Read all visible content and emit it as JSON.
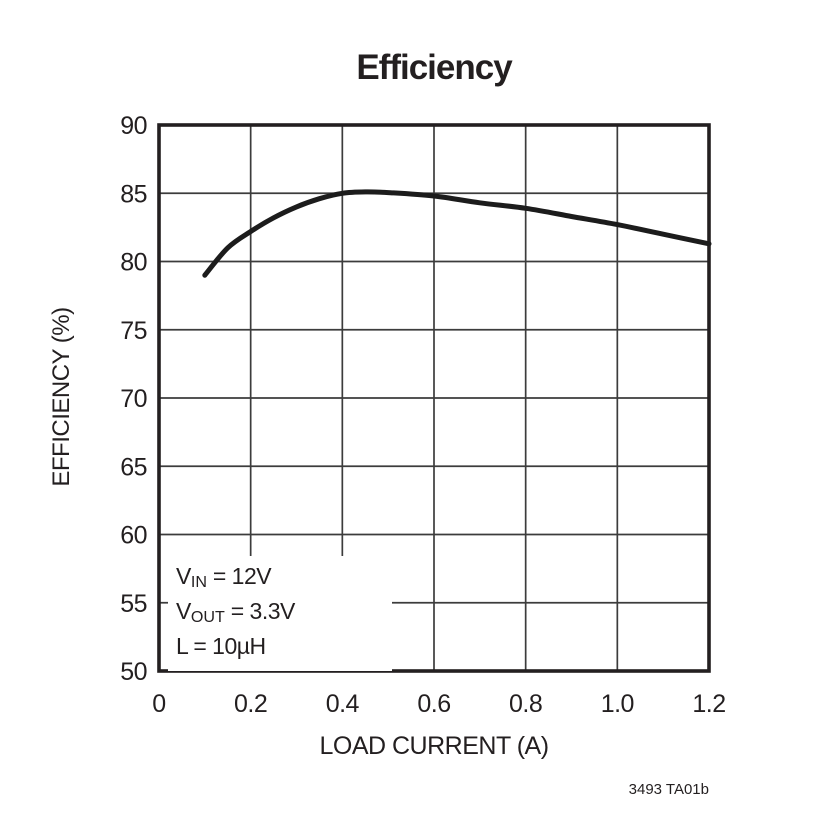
{
  "colors": {
    "ink": "#231f20",
    "grid": "#3c3c3c",
    "curve": "#1c1c1c",
    "background": "#ffffff"
  },
  "footer_code": "3493 TA01b",
  "annotation": {
    "lines": [
      {
        "pre": "V",
        "sub": "IN",
        "post": " = 12V"
      },
      {
        "pre": "V",
        "sub": "OUT",
        "post": " = 3.3V"
      },
      {
        "pre": "L",
        "sub": "",
        "post": " = 10µH"
      }
    ]
  },
  "chart_data": {
    "type": "line",
    "title": "Efficiency",
    "xlabel": "LOAD CURRENT (A)",
    "ylabel": "EFFICIENCY (%)",
    "xlim": [
      0,
      1.2
    ],
    "ylim": [
      50,
      90
    ],
    "xticks": [
      0,
      0.2,
      0.4,
      0.6,
      0.8,
      1.0,
      1.2
    ],
    "xtick_labels": [
      "0",
      "0.2",
      "0.4",
      "0.6",
      "0.8",
      "1.0",
      "1.2"
    ],
    "yticks": [
      50,
      55,
      60,
      65,
      70,
      75,
      80,
      85,
      90
    ],
    "ytick_labels": [
      "50",
      "55",
      "60",
      "65",
      "70",
      "75",
      "80",
      "85",
      "90"
    ],
    "grid": true,
    "legend_position": "none",
    "series": [
      {
        "name": "efficiency-vs-load-current",
        "x": [
          0.1,
          0.15,
          0.2,
          0.25,
          0.3,
          0.35,
          0.4,
          0.45,
          0.5,
          0.6,
          0.7,
          0.8,
          0.9,
          1.0,
          1.1,
          1.2
        ],
        "y": [
          79.0,
          81.0,
          82.2,
          83.2,
          84.0,
          84.6,
          85.0,
          85.1,
          85.05,
          84.8,
          84.3,
          83.9,
          83.3,
          82.7,
          82.0,
          81.3
        ]
      }
    ]
  }
}
